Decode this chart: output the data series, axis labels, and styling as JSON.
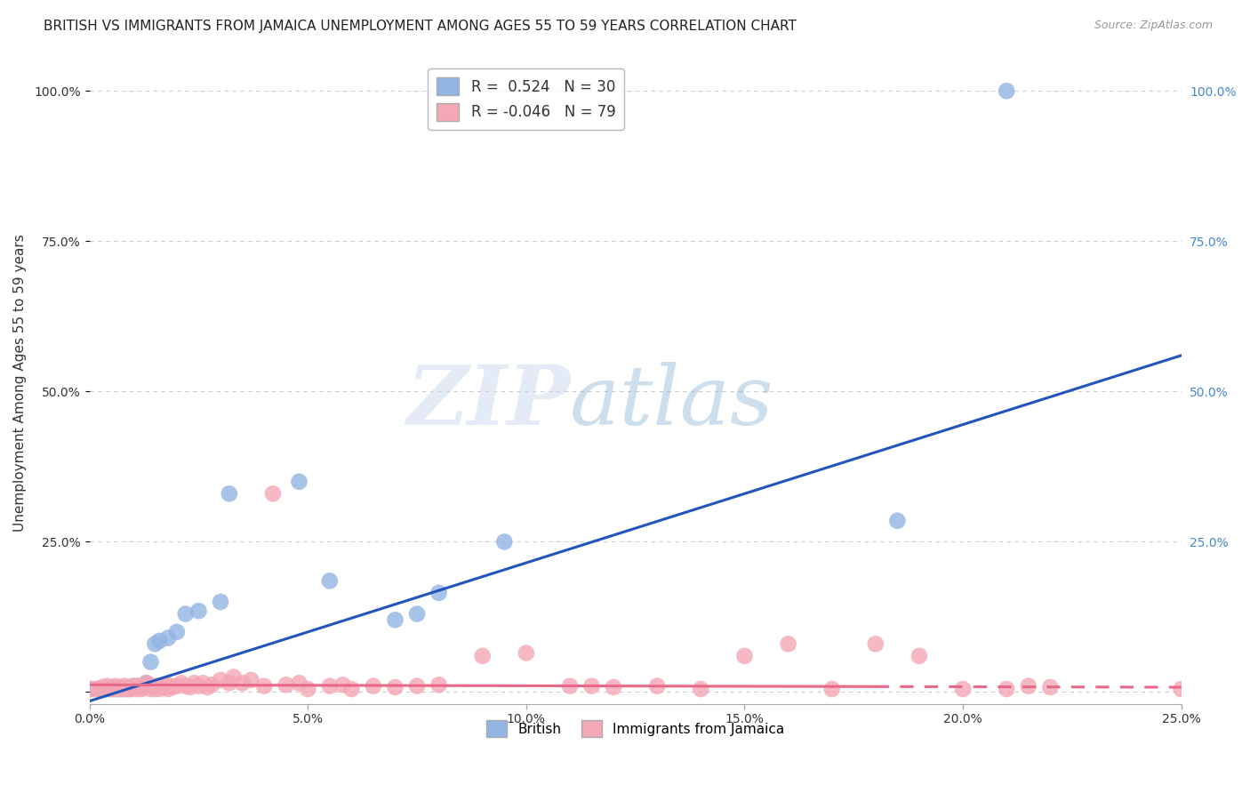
{
  "title": "BRITISH VS IMMIGRANTS FROM JAMAICA UNEMPLOYMENT AMONG AGES 55 TO 59 YEARS CORRELATION CHART",
  "source": "Source: ZipAtlas.com",
  "ylabel": "Unemployment Among Ages 55 to 59 years",
  "xlim": [
    0.0,
    0.25
  ],
  "ylim": [
    -0.02,
    1.05
  ],
  "xticks": [
    0.0,
    0.05,
    0.1,
    0.15,
    0.2,
    0.25
  ],
  "yticks": [
    0.0,
    0.25,
    0.5,
    0.75,
    1.0
  ],
  "xticklabels": [
    "0.0%",
    "5.0%",
    "10.0%",
    "15.0%",
    "20.0%",
    "25.0%"
  ],
  "yticklabels_left": [
    "",
    "25.0%",
    "50.0%",
    "75.0%",
    "100.0%"
  ],
  "yticklabels_right": [
    "",
    "25.0%",
    "50.0%",
    "75.0%",
    "100.0%"
  ],
  "british_R": 0.524,
  "british_N": 30,
  "jamaica_R": -0.046,
  "jamaica_N": 79,
  "british_color": "#92b4e3",
  "jamaica_color": "#f4a7b5",
  "british_line_color": "#2255bb",
  "jamaica_line_color": "#e8688a",
  "british_x": [
    0.0,
    0.002,
    0.003,
    0.004,
    0.005,
    0.006,
    0.007,
    0.008,
    0.009,
    0.01,
    0.011,
    0.012,
    0.013,
    0.014,
    0.015,
    0.016,
    0.018,
    0.02,
    0.022,
    0.025,
    0.03,
    0.032,
    0.048,
    0.055,
    0.07,
    0.075,
    0.08,
    0.095,
    0.185,
    0.21
  ],
  "british_y": [
    0.005,
    0.005,
    0.005,
    0.005,
    0.005,
    0.005,
    0.005,
    0.005,
    0.005,
    0.01,
    0.01,
    0.01,
    0.015,
    0.05,
    0.08,
    0.085,
    0.09,
    0.1,
    0.13,
    0.135,
    0.15,
    0.33,
    0.35,
    0.185,
    0.12,
    0.13,
    0.165,
    0.25,
    0.285,
    1.0
  ],
  "jamaica_x": [
    0.0,
    0.001,
    0.002,
    0.003,
    0.003,
    0.004,
    0.004,
    0.005,
    0.005,
    0.006,
    0.006,
    0.007,
    0.007,
    0.008,
    0.008,
    0.009,
    0.009,
    0.01,
    0.01,
    0.011,
    0.011,
    0.012,
    0.012,
    0.013,
    0.013,
    0.014,
    0.014,
    0.015,
    0.015,
    0.016,
    0.016,
    0.017,
    0.017,
    0.018,
    0.018,
    0.019,
    0.02,
    0.021,
    0.022,
    0.023,
    0.024,
    0.025,
    0.026,
    0.027,
    0.028,
    0.03,
    0.032,
    0.033,
    0.035,
    0.037,
    0.04,
    0.042,
    0.045,
    0.048,
    0.05,
    0.055,
    0.058,
    0.06,
    0.065,
    0.07,
    0.075,
    0.08,
    0.09,
    0.1,
    0.11,
    0.115,
    0.12,
    0.13,
    0.14,
    0.15,
    0.16,
    0.17,
    0.18,
    0.19,
    0.2,
    0.21,
    0.215,
    0.22,
    0.25
  ],
  "jamaica_y": [
    0.005,
    0.005,
    0.005,
    0.005,
    0.008,
    0.005,
    0.01,
    0.005,
    0.008,
    0.005,
    0.01,
    0.005,
    0.008,
    0.005,
    0.01,
    0.005,
    0.008,
    0.005,
    0.01,
    0.005,
    0.01,
    0.005,
    0.008,
    0.01,
    0.015,
    0.005,
    0.01,
    0.005,
    0.01,
    0.005,
    0.01,
    0.008,
    0.012,
    0.005,
    0.012,
    0.008,
    0.01,
    0.015,
    0.01,
    0.008,
    0.015,
    0.01,
    0.015,
    0.008,
    0.012,
    0.02,
    0.015,
    0.025,
    0.015,
    0.02,
    0.01,
    0.33,
    0.012,
    0.015,
    0.005,
    0.01,
    0.012,
    0.005,
    0.01,
    0.008,
    0.01,
    0.012,
    0.06,
    0.065,
    0.01,
    0.01,
    0.008,
    0.01,
    0.005,
    0.06,
    0.08,
    0.005,
    0.08,
    0.06,
    0.005,
    0.005,
    0.01,
    0.008,
    0.005
  ],
  "background_color": "#ffffff",
  "grid_color": "#cccccc",
  "title_fontsize": 11,
  "axis_label_fontsize": 11,
  "tick_fontsize": 10,
  "legend_fontsize": 12,
  "british_line_x": [
    0.0,
    0.25
  ],
  "british_line_y": [
    -0.015,
    0.56
  ],
  "jamaica_line_x": [
    0.0,
    0.25
  ],
  "jamaica_line_y": [
    0.012,
    0.008
  ]
}
